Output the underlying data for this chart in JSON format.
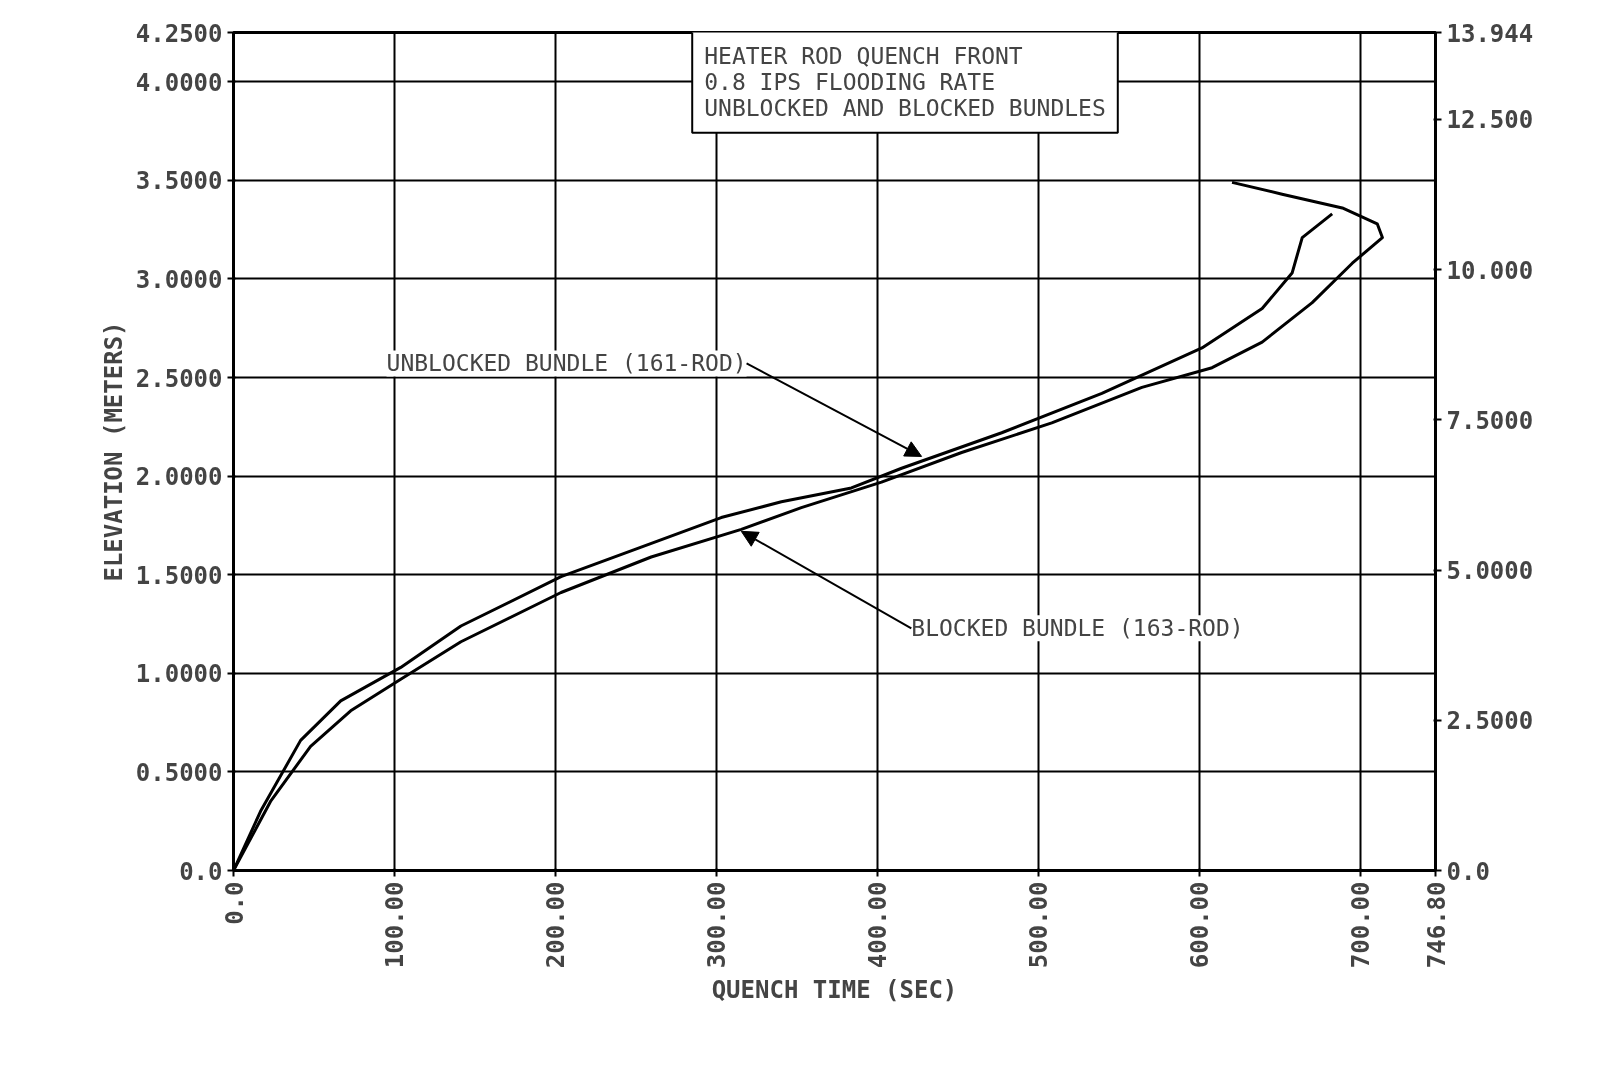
{
  "chart_data": {
    "type": "line",
    "title": "HEATER ROD QUENCH FRONT\n0.8 IPS FLOODING RATE\nUNBLOCKED AND BLOCKED BUNDLES",
    "xlabel": "QUENCH TIME (SEC)",
    "ylabel": "ELEVATION (METERS)",
    "xlim": [
      0,
      746.8
    ],
    "xticks": [
      {
        "value": 0,
        "label": "0.0"
      },
      {
        "value": 100,
        "label": "100.00"
      },
      {
        "value": 200,
        "label": "200.00"
      },
      {
        "value": 300,
        "label": "300.00"
      },
      {
        "value": 400,
        "label": "400.00"
      },
      {
        "value": 500,
        "label": "500.00"
      },
      {
        "value": 600,
        "label": "600.00"
      },
      {
        "value": 700,
        "label": "700.00"
      },
      {
        "value": 746.8,
        "label": "746.80"
      }
    ],
    "ylim": [
      0,
      4.25
    ],
    "yticks": [
      {
        "value": 0,
        "label": "0.0"
      },
      {
        "value": 0.5,
        "label": "0.5000"
      },
      {
        "value": 1,
        "label": "1.0000"
      },
      {
        "value": 1.5,
        "label": "1.5000"
      },
      {
        "value": 2,
        "label": "2.0000"
      },
      {
        "value": 2.5,
        "label": "2.5000"
      },
      {
        "value": 3,
        "label": "3.0000"
      },
      {
        "value": 3.5,
        "label": "3.5000"
      },
      {
        "value": 4,
        "label": "4.0000"
      },
      {
        "value": 4.25,
        "label": "4.2500"
      }
    ],
    "y2lim": [
      0,
      13.944
    ],
    "y2ticks": [
      {
        "value": 0,
        "label": "0.0"
      },
      {
        "value": 2.5,
        "label": "2.5000"
      },
      {
        "value": 5,
        "label": "5.0000"
      },
      {
        "value": 7.5,
        "label": "7.5000"
      },
      {
        "value": 10,
        "label": "10.000"
      },
      {
        "value": 12.5,
        "label": "12.500"
      },
      {
        "value": 13.944,
        "label": "13.944"
      }
    ],
    "grid": true,
    "marker": "none",
    "line_style": "solid",
    "annotations": [
      {
        "text": "UNBLOCKED BUNDLE (161-ROD)",
        "x": 427.5,
        "y": 2.1
      },
      {
        "text": "BLOCKED BUNDLE (163-ROD)",
        "x": 315.5,
        "y": 1.72
      }
    ],
    "series": [
      {
        "color": "#000000",
        "x": [
          0,
          16.8,
          41.7,
          66.6,
          103.9,
          141.3,
          203.5,
          253.3,
          303.0,
          340.4,
          383.9,
          415.1,
          477.3,
          539.5,
          601.7,
          639.1,
          657.7,
          664.0,
          682.6
        ],
        "values": [
          0,
          0.3,
          0.66,
          0.86,
          1.03,
          1.24,
          1.49,
          1.64,
          1.79,
          1.87,
          1.94,
          2.04,
          2.22,
          2.42,
          2.65,
          2.85,
          3.03,
          3.21,
          3.33
        ]
      },
      {
        "color": "#000000",
        "x": [
          0,
          23.0,
          47.9,
          72.8,
          103.9,
          141.3,
          203.5,
          259.5,
          315.5,
          352.8,
          402.6,
          452.4,
          508.4,
          564.4,
          608.0,
          639.1,
          670.2,
          695.1,
          713.8,
          710.6,
          688.9,
          651.5,
          620.4
        ],
        "values": [
          0,
          0.35,
          0.63,
          0.81,
          0.97,
          1.16,
          1.41,
          1.59,
          1.73,
          1.84,
          1.97,
          2.12,
          2.27,
          2.45,
          2.55,
          2.68,
          2.88,
          3.08,
          3.21,
          3.28,
          3.36,
          3.43,
          3.49
        ]
      }
    ]
  }
}
